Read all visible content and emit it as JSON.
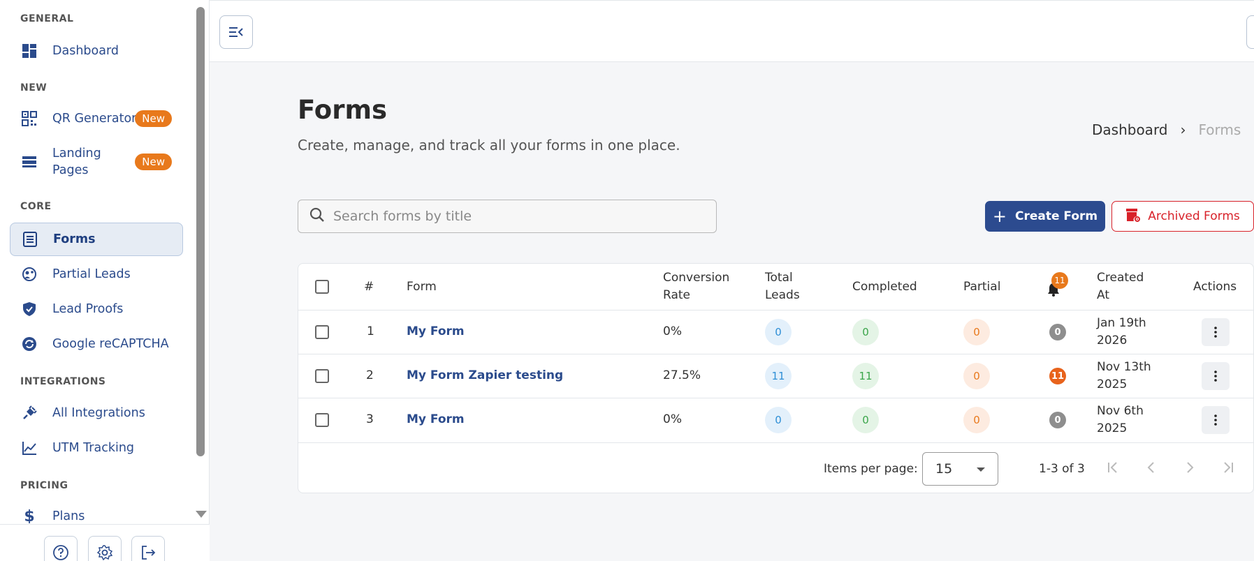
{
  "sidebar": {
    "sections": {
      "general": "GENERAL",
      "new": "NEW",
      "core": "CORE",
      "integrations": "INTEGRATIONS",
      "pricing": "PRICING"
    },
    "items": {
      "dashboard": "Dashboard",
      "qr_generator": "QR Generator",
      "landing_pages_1": "Landing",
      "landing_pages_2": "Pages",
      "forms": "Forms",
      "partial_leads": "Partial Leads",
      "lead_proofs": "Lead Proofs",
      "recaptcha": "Google reCAPTCHA",
      "all_integrations": "All Integrations",
      "utm_tracking": "UTM Tracking",
      "plans": "Plans"
    },
    "badge_new": "New"
  },
  "page": {
    "title": "Forms",
    "subtitle": "Create, manage, and track all your forms in one place.",
    "breadcrumb": {
      "home": "Dashboard",
      "separator": "›",
      "current": "Forms"
    }
  },
  "search": {
    "placeholder": "Search forms by title"
  },
  "actions": {
    "create": "Create Form",
    "archived": "Archived Forms"
  },
  "table": {
    "headers": {
      "num": "#",
      "form": "Form",
      "conversion_1": "Conversion",
      "conversion_2": "Rate",
      "total_1": "Total",
      "total_2": "Leads",
      "completed": "Completed",
      "partial": "Partial",
      "notifications_badge": "11",
      "created_1": "Created",
      "created_2": "At",
      "actions": "Actions"
    },
    "rows": [
      {
        "num": "1",
        "form": "My Form",
        "conversion": "0%",
        "total": "0",
        "completed": "0",
        "partial": "0",
        "notifications": "0",
        "created_1": "Jan 19th",
        "created_2": "2026"
      },
      {
        "num": "2",
        "form": "My Form Zapier testing",
        "conversion": "27.5%",
        "total": "11",
        "completed": "11",
        "partial": "0",
        "notifications": "11",
        "created_1": "Nov 13th",
        "created_2": "2025"
      },
      {
        "num": "3",
        "form": "My Form",
        "conversion": "0%",
        "total": "0",
        "completed": "0",
        "partial": "0",
        "notifications": "0",
        "created_1": "Nov 6th",
        "created_2": "2025"
      }
    ]
  },
  "pagination": {
    "items_per_page_label": "Items per page:",
    "items_per_page": "15",
    "range": "1-3 of 3"
  },
  "colors": {
    "primary": "#2c4b8f",
    "danger": "#d8222a",
    "badge": "#e8791c"
  }
}
